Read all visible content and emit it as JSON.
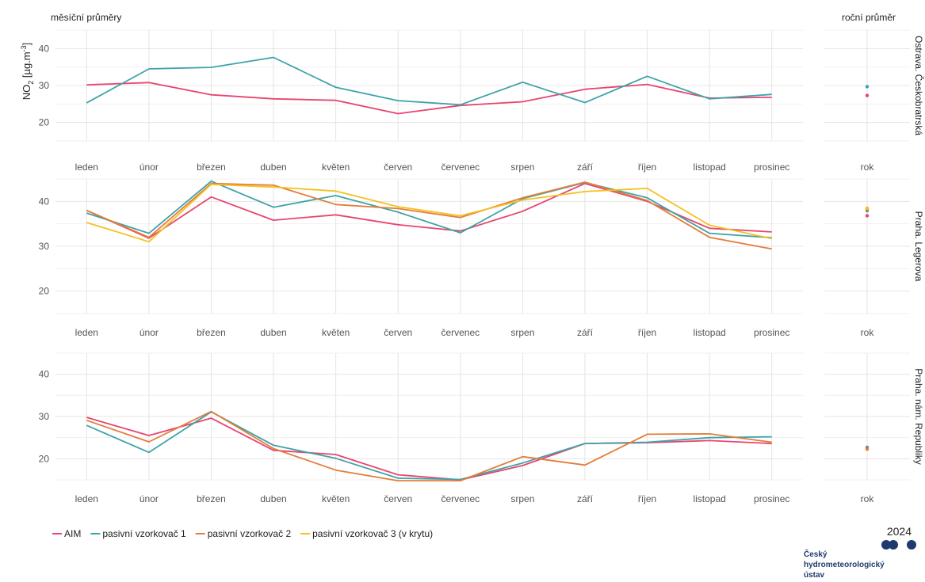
{
  "header_left": "měsíční průměry",
  "header_right": "roční průměr",
  "year": "2024",
  "logo_lines": [
    "Český",
    "hydrometeorologický",
    "ústav"
  ],
  "colors": {
    "AIM": "#e8456f",
    "pasivní vzorkovač 1": "#3ea3a8",
    "pasivní vzorkovač 2": "#e27d3a",
    "pasivní vzorkovač 3 (v krytu)": "#f5c021",
    "logo": "#1f3a6e"
  },
  "chart_data": {
    "type": "line",
    "ylabel": "NO₂ [µg.m⁻³]",
    "ylabel_main": "NO",
    "ylabel_sub": "2",
    "ylabel_unit": " [µg.m",
    "ylabel_sup": "-3",
    "ylabel_close": "]",
    "ylim": [
      15,
      45
    ],
    "yticks": [
      20,
      30,
      40
    ],
    "grid": true,
    "legend_position": "bottom-left",
    "categories": [
      "leden",
      "únor",
      "březen",
      "duben",
      "květen",
      "červen",
      "červenec",
      "srpen",
      "září",
      "říjen",
      "listopad",
      "prosinec"
    ],
    "annual_category": "rok",
    "legend": [
      "AIM",
      "pasivní vzorkovač 1",
      "pasivní vzorkovač 2",
      "pasivní vzorkovač 3 (v krytu)"
    ],
    "panels": [
      {
        "station": "Ostrava. Českobratrská",
        "series": [
          {
            "name": "AIM",
            "values": [
              30.2,
              30.8,
              27.5,
              26.4,
              26.0,
              22.4,
              24.6,
              25.6,
              29.0,
              30.3,
              26.6,
              26.8
            ],
            "annual": 27.3
          },
          {
            "name": "pasivní vzorkovač 1",
            "values": [
              25.3,
              34.5,
              34.9,
              37.6,
              29.5,
              25.9,
              24.8,
              30.9,
              25.4,
              32.5,
              26.4,
              27.6
            ],
            "annual": 29.7
          }
        ]
      },
      {
        "station": "Praha. Legerova",
        "series": [
          {
            "name": "AIM",
            "values": [
              38.0,
              31.8,
              41.0,
              35.8,
              37.0,
              34.8,
              33.4,
              37.8,
              44.0,
              40.0,
              34.0,
              33.2
            ],
            "annual": 36.8
          },
          {
            "name": "pasivní vzorkovač 1",
            "values": [
              37.4,
              32.9,
              44.5,
              38.7,
              41.3,
              37.6,
              33.0,
              40.6,
              44.2,
              40.8,
              32.9,
              31.9
            ],
            "annual": 37.9
          },
          {
            "name": "pasivní vzorkovač 2",
            "values": [
              38.0,
              32.0,
              44.0,
              43.6,
              39.3,
              38.4,
              36.4,
              40.8,
              44.3,
              40.2,
              32.0,
              29.4
            ],
            "annual": 38.2
          },
          {
            "name": "pasivní vzorkovač 3 (v krytu)",
            "values": [
              35.3,
              31.0,
              43.8,
              43.2,
              42.3,
              38.8,
              36.8,
              40.3,
              42.2,
              42.9,
              34.7,
              31.7
            ],
            "annual": 38.5
          }
        ]
      },
      {
        "station": "Praha. nám. Republiky",
        "series": [
          {
            "name": "AIM",
            "values": [
              29.8,
              25.5,
              29.6,
              22.0,
              21.0,
              16.2,
              15.0,
              18.4,
              23.6,
              23.8,
              24.3,
              23.6
            ],
            "annual": 22.7
          },
          {
            "name": "pasivní vzorkovač 1",
            "values": [
              27.9,
              21.5,
              31.1,
              23.2,
              20.1,
              15.4,
              15.1,
              19.0,
              23.6,
              23.9,
              25.0,
              25.2
            ],
            "annual": 22.6
          },
          {
            "name": "pasivní vzorkovač 2",
            "values": [
              29.1,
              24.0,
              31.2,
              22.4,
              17.3,
              14.8,
              14.8,
              20.5,
              18.5,
              25.8,
              25.9,
              23.9
            ],
            "annual": 22.3
          }
        ]
      }
    ]
  }
}
